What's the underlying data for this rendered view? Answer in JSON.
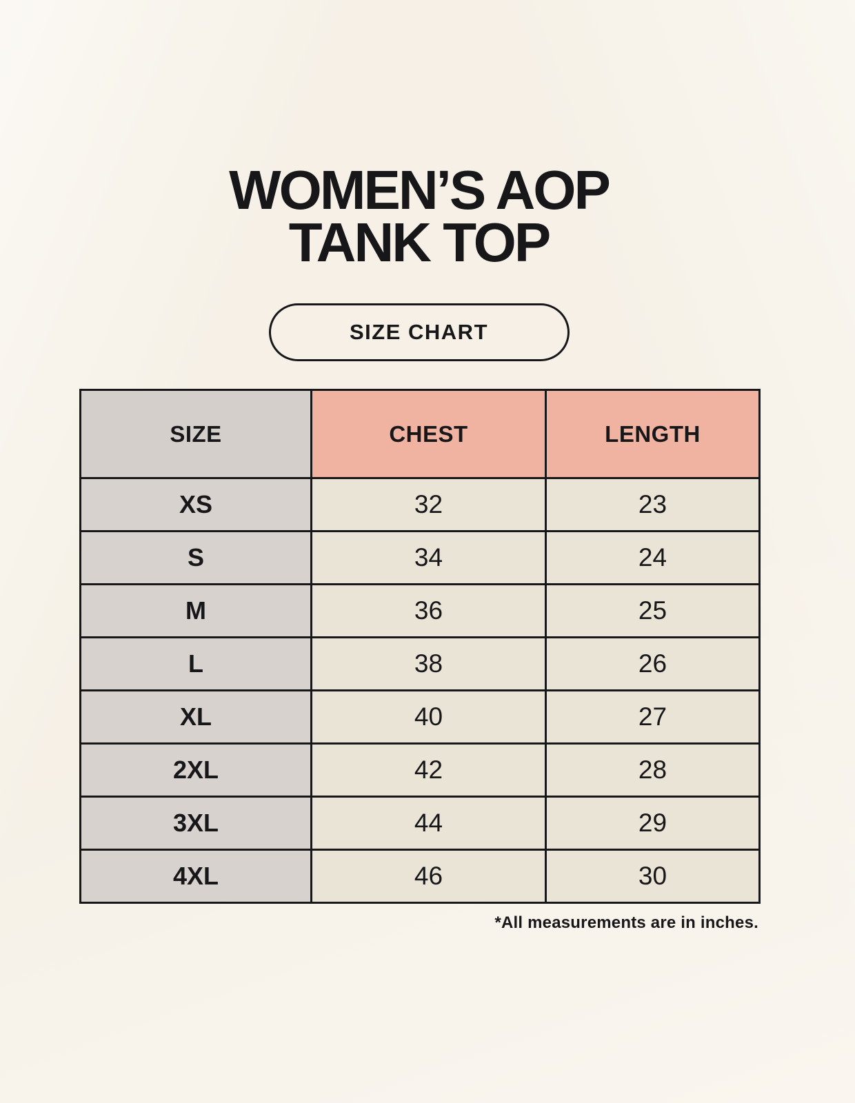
{
  "page": {
    "title_line1": "WOMEN’S AOP",
    "title_line2": "TANK TOP",
    "button_label": "SIZE CHART",
    "footnote": "*All measurements are in inches."
  },
  "chart_data": {
    "type": "table",
    "title": "WOMEN’S AOP TANK TOP",
    "subtitle": "SIZE CHART",
    "units": "inches",
    "columns": [
      "SIZE",
      "CHEST",
      "LENGTH"
    ],
    "rows": [
      {
        "size": "XS",
        "chest": 32,
        "length": 23
      },
      {
        "size": "S",
        "chest": 34,
        "length": 24
      },
      {
        "size": "M",
        "chest": 36,
        "length": 25
      },
      {
        "size": "L",
        "chest": 38,
        "length": 26
      },
      {
        "size": "XL",
        "chest": 40,
        "length": 27
      },
      {
        "size": "2XL",
        "chest": 42,
        "length": 28
      },
      {
        "size": "3XL",
        "chest": 44,
        "length": 29
      },
      {
        "size": "4XL",
        "chest": 46,
        "length": 30
      }
    ]
  },
  "colors": {
    "background": "#f8f3ea",
    "table_border": "#17171a",
    "header_size_bg": "#d5cfcc",
    "header_measure_bg": "#f0b2a1",
    "size_col_bg": "#d8d2cf",
    "data_cell_bg": "#eae4d6",
    "text": "#17171a"
  }
}
